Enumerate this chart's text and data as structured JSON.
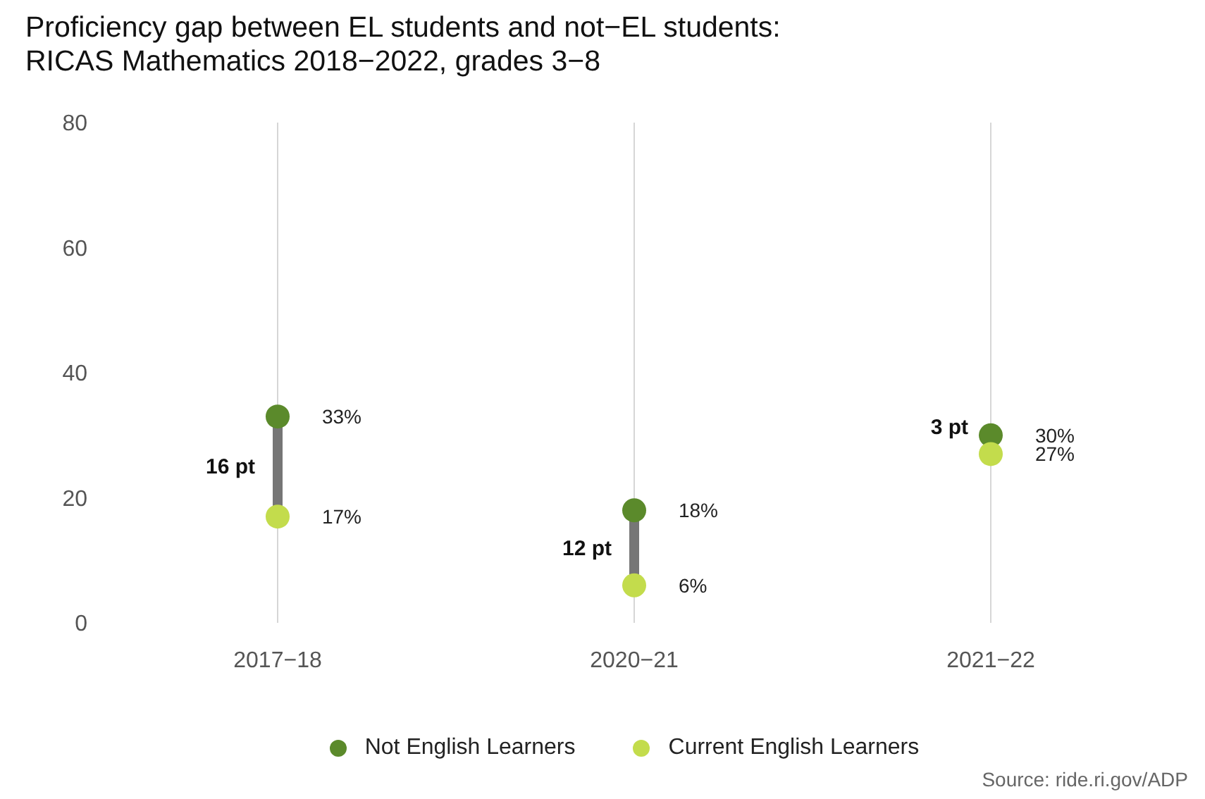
{
  "chart_data": {
    "type": "scatter",
    "title": "Proficiency gap between EL students and not−EL students: RICAS Mathematics 2018−2022, grades 3−8",
    "categories": [
      "2017−18",
      "2020−21",
      "2021−22"
    ],
    "series": [
      {
        "name": "Not English Learners",
        "color": "#5b8a2b",
        "values": [
          33,
          18,
          30
        ],
        "value_labels": [
          "33%",
          "18%",
          "30%"
        ]
      },
      {
        "name": "Current English Learners",
        "color": "#c3dc4c",
        "values": [
          17,
          6,
          27
        ],
        "value_labels": [
          "17%",
          "6%",
          "27%"
        ]
      }
    ],
    "ylim": [
      0,
      80
    ],
    "yticks": [
      0,
      20,
      40,
      60,
      80
    ],
    "grid": "x",
    "legend": "bottom",
    "marker": "circle",
    "annotations": [
      "16 pt",
      "12 pt",
      "3 pt",
      "Source: ride.ri.gov/ADP"
    ]
  }
}
